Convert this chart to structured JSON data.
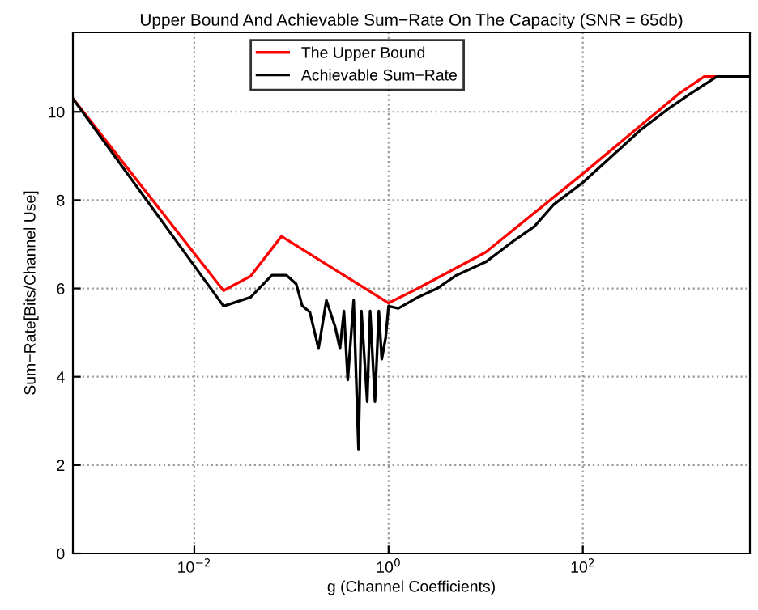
{
  "chart_data": {
    "type": "line",
    "title": "Upper Bound And Achievable Sum−Rate On The Capacity (SNR = 65db)",
    "xlabel": "g (Channel Coefficients)",
    "ylabel": "Sum−Rate[Bits/Channel Use]",
    "log": "x",
    "xlim": [
      0.000562,
      5250
    ],
    "xticks": [
      {
        "value": 0.01,
        "label": "10$^{−2}$"
      },
      {
        "value": 1,
        "label": "10$^{0}$"
      },
      {
        "value": 100,
        "label": "10$^{2}$"
      }
    ],
    "ylim": [
      0,
      11.8
    ],
    "yticks": [
      0,
      2,
      4,
      6,
      8,
      10
    ],
    "grid": true,
    "legend": "top",
    "line_style": "solid",
    "marker": "none",
    "series": [
      {
        "name": "The Upper Bound",
        "color": "#ff0000",
        "x": [
          0.000562,
          0.02,
          0.038,
          0.079,
          1,
          2,
          10,
          100,
          1000,
          1780,
          5250
        ],
        "values": [
          10.3,
          5.95,
          6.28,
          7.18,
          5.67,
          6.0,
          6.82,
          8.6,
          10.43,
          10.8,
          10.8
        ]
      },
      {
        "name": "Achievable Sum−Rate",
        "color": "#000000",
        "x": [
          0.000562,
          0.02,
          0.038,
          0.063,
          0.089,
          0.112,
          0.129,
          0.155,
          0.19,
          0.229,
          0.282,
          0.316,
          0.347,
          0.38,
          0.437,
          0.49,
          0.525,
          0.603,
          0.646,
          0.724,
          0.794,
          0.851,
          0.933,
          1,
          1.26,
          2,
          3.16,
          5.01,
          10,
          20,
          31.6,
          50.1,
          100,
          200,
          398,
          794,
          1260,
          2400,
          5250
        ],
        "values": [
          10.3,
          5.6,
          5.8,
          6.3,
          6.3,
          6.1,
          5.61,
          5.46,
          4.64,
          5.73,
          5.13,
          4.64,
          5.49,
          3.93,
          5.73,
          2.36,
          5.49,
          3.44,
          5.49,
          3.44,
          5.49,
          4.4,
          4.88,
          5.6,
          5.55,
          5.8,
          6.0,
          6.3,
          6.6,
          7.1,
          7.4,
          7.9,
          8.4,
          9.0,
          9.6,
          10.1,
          10.4,
          10.8,
          10.8
        ]
      }
    ]
  }
}
